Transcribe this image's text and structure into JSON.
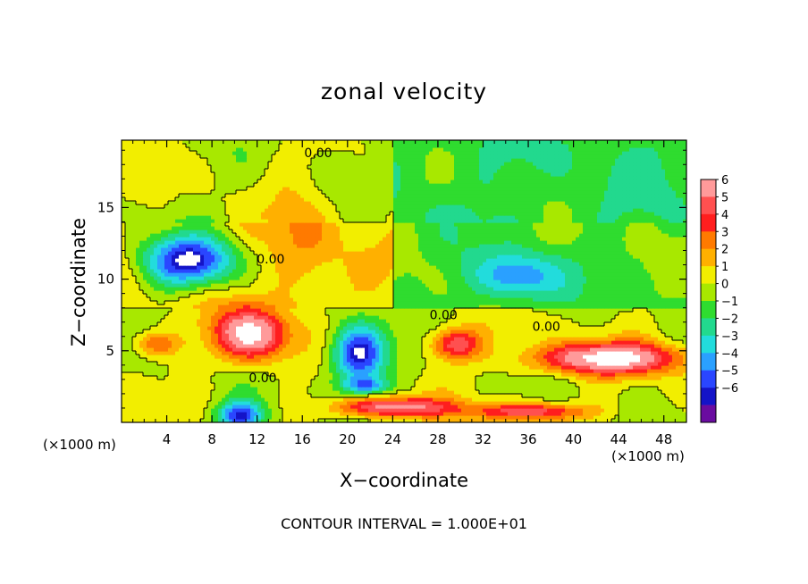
{
  "chart_data": {
    "type": "heatmap",
    "title": "zonal velocity",
    "xlabel": "X−coordinate",
    "ylabel": "Z−coordinate",
    "x_unit_note": "(×1000 m)",
    "x_ticks": [
      4,
      8,
      12,
      16,
      20,
      24,
      28,
      32,
      36,
      40,
      44,
      48
    ],
    "y_ticks": [
      5,
      10,
      15
    ],
    "xlim": [
      0,
      50
    ],
    "ylim": [
      0,
      19.7
    ],
    "colorbar": {
      "levels": [
        6,
        5,
        4,
        3,
        2,
        1,
        0,
        -1,
        -2,
        -3,
        -4,
        -5,
        -6
      ],
      "labels": [
        "6",
        "5",
        "4",
        "3",
        "2",
        "1",
        "0",
        "−1",
        "−2",
        "−3",
        "−4",
        "−5",
        "−6"
      ],
      "colors": [
        "#ff9a9a",
        "#ff5050",
        "#ff1e1e",
        "#ff7a00",
        "#ffb000",
        "#f2ee00",
        "#a8e800",
        "#2fdc2f",
        "#22d98e",
        "#22dcdc",
        "#2aa0ff",
        "#2a46ff",
        "#1414c8",
        "#6a0ca0"
      ]
    },
    "contour_labels": [
      {
        "text": "0.00",
        "x": 17.4,
        "y": 18.5
      },
      {
        "text": "0.00",
        "x": 13.2,
        "y": 11.1
      },
      {
        "text": "0.00",
        "x": 28.5,
        "y": 7.2
      },
      {
        "text": "0.00",
        "x": 37.6,
        "y": 6.4
      },
      {
        "text": "0.00",
        "x": 12.5,
        "y": 2.8
      }
    ],
    "features": [
      {
        "kind": "min",
        "x": 6.0,
        "y": 11.3,
        "rx": 4.0,
        "ry": 1.8,
        "value": -7
      },
      {
        "kind": "min",
        "x": 21.0,
        "y": 4.8,
        "rx": 2.4,
        "ry": 2.0,
        "value": -7
      },
      {
        "kind": "min",
        "x": 35.0,
        "y": 10.2,
        "rx": 3.5,
        "ry": 1.6,
        "value": -4
      },
      {
        "kind": "min",
        "x": 10.5,
        "y": 0.5,
        "rx": 2.0,
        "ry": 1.0,
        "value": -6
      },
      {
        "kind": "min",
        "x": 21.5,
        "y": 2.6,
        "rx": 2.0,
        "ry": 0.6,
        "value": -4
      },
      {
        "kind": "max",
        "x": 11.5,
        "y": 6.2,
        "rx": 3.2,
        "ry": 1.8,
        "value": 7
      },
      {
        "kind": "max",
        "x": 29.5,
        "y": 5.5,
        "rx": 2.2,
        "ry": 1.1,
        "value": 5
      },
      {
        "kind": "max",
        "x": 43.0,
        "y": 4.5,
        "rx": 6.5,
        "ry": 1.1,
        "value": 7
      },
      {
        "kind": "max",
        "x": 3.0,
        "y": 5.5,
        "rx": 2.2,
        "ry": 0.8,
        "value": 3
      },
      {
        "kind": "max",
        "x": 24.0,
        "y": 1.1,
        "rx": 4.8,
        "ry": 0.7,
        "value": 6
      },
      {
        "kind": "max",
        "x": 36.0,
        "y": 0.8,
        "rx": 5.0,
        "ry": 0.6,
        "value": 5
      },
      {
        "kind": "max",
        "x": 16.0,
        "y": 12.5,
        "rx": 3.0,
        "ry": 4.5,
        "value": 1.6
      }
    ]
  },
  "contour_interval_text": "CONTOUR INTERVAL = 1.000E+01"
}
